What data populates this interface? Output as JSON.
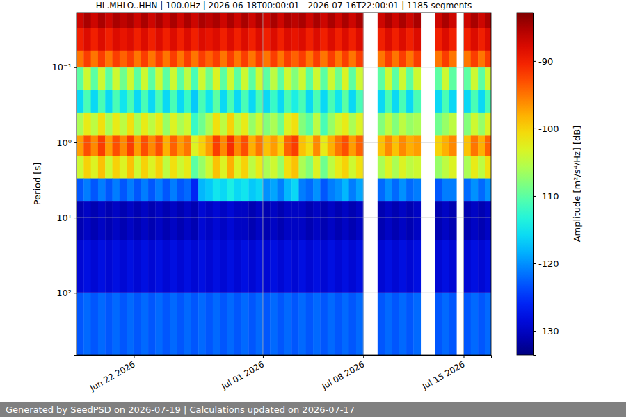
{
  "chart_data": {
    "type": "heatmap",
    "title": "HL.MHLO..HHN | 100.0Hz | 2026-06-18T00:00:01 - 2026-07-16T22:00:01 | 1185 segments",
    "y_label": "Period [s]",
    "annotations": [
      "Generated by SeedPSD on 2026-07-19 | Calculations updated on 2026-07-17"
    ],
    "log": "y",
    "grid": true,
    "color": "jet",
    "xlim": [
      "2026-06-18T00:00:00",
      "2026-07-16T22:00:00"
    ],
    "xticks": [
      {
        "value": "2026-06-22T00:00:00",
        "label": "Jun 22 2026"
      },
      {
        "value": "2026-07-01T00:00:00",
        "label": "Jul 01 2026"
      },
      {
        "value": "2026-07-08T00:00:00",
        "label": "Jul 08 2026"
      },
      {
        "value": "2026-07-15T00:00:00",
        "label": "Jul 15 2026"
      }
    ],
    "ylim": [
      0.0187,
      675
    ],
    "yticks": [
      {
        "value": 0.1,
        "label": "10⁻¹"
      },
      {
        "value": 1,
        "label": "10⁰"
      },
      {
        "value": 10,
        "label": "10¹"
      },
      {
        "value": 100,
        "label": "10²"
      }
    ],
    "colorbar": {
      "label": "Amplitude [m²/s⁴/Hz] [dB]",
      "range": [
        -133.6,
        -82.8
      ],
      "ticks": [
        -90,
        -100,
        -110,
        -120,
        -130
      ]
    },
    "x_bins": [
      "2026-06-18T00:00:00",
      "2026-06-18T12:00:00",
      "2026-06-19T00:00:00",
      "2026-06-19T12:00:00",
      "2026-06-20T00:00:00",
      "2026-06-20T12:00:00",
      "2026-06-21T00:00:00",
      "2026-06-21T12:00:00",
      "2026-06-22T00:00:00",
      "2026-06-22T12:00:00",
      "2026-06-23T00:00:00",
      "2026-06-23T12:00:00",
      "2026-06-24T00:00:00",
      "2026-06-24T12:00:00",
      "2026-06-25T00:00:00",
      "2026-06-25T12:00:00",
      "2026-06-26T00:00:00",
      "2026-06-26T12:00:00",
      "2026-06-27T00:00:00",
      "2026-06-27T12:00:00",
      "2026-06-28T00:00:00",
      "2026-06-28T12:00:00",
      "2026-06-29T00:00:00",
      "2026-06-29T12:00:00",
      "2026-06-30T00:00:00",
      "2026-06-30T12:00:00",
      "2026-07-01T00:00:00",
      "2026-07-01T12:00:00",
      "2026-07-02T00:00:00",
      "2026-07-02T12:00:00",
      "2026-07-03T00:00:00",
      "2026-07-03T12:00:00",
      "2026-07-04T00:00:00",
      "2026-07-04T12:00:00",
      "2026-07-05T00:00:00",
      "2026-07-05T12:00:00",
      "2026-07-06T00:00:00",
      "2026-07-06T12:00:00",
      "2026-07-07T00:00:00",
      "2026-07-07T12:00:00",
      "2026-07-08T00:00:00",
      "2026-07-08T12:00:00",
      "2026-07-09T00:00:00",
      "2026-07-09T12:00:00",
      "2026-07-10T00:00:00",
      "2026-07-10T12:00:00",
      "2026-07-11T00:00:00",
      "2026-07-11T12:00:00",
      "2026-07-12T00:00:00",
      "2026-07-12T12:00:00",
      "2026-07-13T00:00:00",
      "2026-07-13T12:00:00",
      "2026-07-14T00:00:00",
      "2026-07-14T12:00:00",
      "2026-07-15T00:00:00",
      "2026-07-15T12:00:00",
      "2026-07-16T00:00:00",
      "2026-07-16T12:00:00",
      "2026-07-16T22:00:00"
    ],
    "y_bins": [
      0.0187,
      0.03,
      0.06,
      0.1,
      0.2,
      0.4,
      0.8,
      1.5,
      3,
      6,
      20,
      100,
      675
    ],
    "values": [
      [
        -87,
        -85,
        -87,
        -85,
        -87,
        -85,
        -86,
        -85,
        -87,
        -85,
        -87,
        -85,
        -87,
        -85,
        -87,
        -85,
        -87,
        -85,
        -86,
        -85,
        -87,
        -85,
        -87,
        -85,
        -87,
        -85,
        -87,
        -85,
        -87,
        -85,
        -86,
        -85,
        -87,
        -85,
        -87,
        -85,
        -87,
        -85,
        -87,
        -85,
        null,
        null,
        -87,
        -85,
        -87,
        -85,
        -87,
        -85,
        null,
        null,
        -87,
        -85,
        -87,
        null,
        -87,
        -85,
        -87,
        -85
      ],
      [
        -90,
        -88,
        -90,
        -88,
        -90,
        -88,
        -89,
        -88,
        -90,
        -88,
        -90,
        -88,
        -90,
        -88,
        -90,
        -88,
        -90,
        -88,
        -89,
        -88,
        -90,
        -88,
        -90,
        -88,
        -90,
        -88,
        -90,
        -88,
        -90,
        -88,
        -89,
        -88,
        -90,
        -88,
        -90,
        -88,
        -90,
        -88,
        -90,
        -88,
        null,
        null,
        -90,
        -88,
        -90,
        -88,
        -90,
        -88,
        null,
        null,
        -90,
        -88,
        -90,
        null,
        -90,
        -88,
        -90,
        -88
      ],
      [
        -95,
        -92,
        -95,
        -92,
        -95,
        -92,
        -94,
        -92,
        -95,
        -92,
        -95,
        -92,
        -95,
        -92,
        -95,
        -92,
        -95,
        -92,
        -94,
        -92,
        -95,
        -92,
        -95,
        -92,
        -95,
        -92,
        -95,
        -92,
        -95,
        -92,
        -94,
        -92,
        -95,
        -92,
        -95,
        -92,
        -95,
        -92,
        -95,
        -92,
        null,
        null,
        -95,
        -92,
        -95,
        -92,
        -95,
        -92,
        null,
        null,
        -95,
        -92,
        -95,
        null,
        -95,
        -92,
        -95,
        -92
      ],
      [
        -110,
        -104,
        -110,
        -104,
        -110,
        -104,
        -109,
        -104,
        -110,
        -104,
        -110,
        -104,
        -110,
        -104,
        -110,
        -105,
        -111,
        -104,
        -109,
        -103,
        -110,
        -104,
        -110,
        -104,
        -110,
        -104,
        -110,
        -105,
        -110,
        -104,
        -108,
        -104,
        -110,
        -104,
        -110,
        -104,
        -109,
        -103,
        -110,
        -104,
        null,
        null,
        -110,
        -104,
        -110,
        -104,
        -110,
        -104,
        null,
        null,
        -110,
        -104,
        -110,
        null,
        -110,
        -104,
        -110,
        -104
      ],
      [
        -116,
        -111,
        -116,
        -111,
        -116,
        -111,
        -115,
        -111,
        -116,
        -111,
        -116,
        -111,
        -116,
        -111,
        -116,
        -112,
        -117,
        -111,
        -115,
        -110,
        -116,
        -111,
        -116,
        -111,
        -116,
        -111,
        -116,
        -112,
        -116,
        -111,
        -114,
        -111,
        -116,
        -111,
        -116,
        -111,
        -115,
        -110,
        -116,
        -111,
        null,
        null,
        -116,
        -111,
        -116,
        -111,
        -116,
        -111,
        null,
        null,
        -116,
        -111,
        -116,
        null,
        -116,
        -111,
        -116,
        -111
      ],
      [
        -106,
        -102,
        -105,
        -101,
        -106,
        -102,
        -105,
        -101,
        -106,
        -102,
        -105,
        -102,
        -107,
        -103,
        -106,
        -104,
        -112,
        -109,
        -106,
        -101,
        -105,
        -100,
        -105,
        -102,
        -107,
        -104,
        -108,
        -106,
        -109,
        -103,
        -101,
        -108,
        -110,
        -105,
        -111,
        -107,
        -104,
        -102,
        -106,
        -103,
        null,
        null,
        -108,
        -105,
        -108,
        -105,
        -107,
        -106,
        null,
        null,
        -109,
        -107,
        -105,
        null,
        -108,
        -104,
        -107,
        -103
      ],
      [
        -97,
        -93,
        -96,
        -92,
        -97,
        -93,
        -96,
        -92,
        -97,
        -93,
        -96,
        -93,
        -98,
        -94,
        -97,
        -95,
        -103,
        -100,
        -97,
        -92,
        -96,
        -91,
        -96,
        -93,
        -98,
        -95,
        -99,
        -97,
        -100,
        -94,
        -92,
        -99,
        -101,
        -96,
        -102,
        -98,
        -95,
        -93,
        -97,
        -94,
        null,
        null,
        -99,
        -96,
        -99,
        -96,
        -98,
        -97,
        null,
        null,
        -100,
        -98,
        -96,
        null,
        -99,
        -95,
        -98,
        -94
      ],
      [
        -104,
        -100,
        -103,
        -99,
        -104,
        -100,
        -103,
        -99,
        -104,
        -100,
        -103,
        -100,
        -105,
        -101,
        -104,
        -102,
        -110,
        -107,
        -104,
        -99,
        -103,
        -98,
        -103,
        -100,
        -105,
        -102,
        -106,
        -104,
        -107,
        -101,
        -99,
        -106,
        -108,
        -103,
        -109,
        -105,
        -102,
        -100,
        -104,
        -101,
        null,
        null,
        -106,
        -103,
        -106,
        -103,
        -105,
        -104,
        null,
        null,
        -107,
        -105,
        -103,
        null,
        -106,
        -102,
        -105,
        -101
      ],
      [
        -123,
        -121,
        -123,
        -121,
        -123,
        -121,
        -123,
        -121,
        -123,
        -121,
        -123,
        -121,
        -123,
        -121,
        -123,
        -122,
        -126,
        -118,
        -117,
        -115,
        -116,
        -114,
        -116,
        -115,
        -117,
        -116,
        -120,
        -119,
        -121,
        -118,
        -116,
        -121,
        -122,
        -120,
        -123,
        -121,
        -120,
        -118,
        -121,
        -119,
        null,
        null,
        -122,
        -120,
        -122,
        -120,
        -122,
        -121,
        null,
        null,
        -123,
        -121,
        -121,
        null,
        -122,
        -120,
        -122,
        -120
      ],
      [
        -131,
        -130,
        -131,
        -130,
        -131,
        -130,
        -131,
        -130,
        -131,
        -130,
        -131,
        -130,
        -131,
        -130,
        -131,
        -130,
        -131,
        -129,
        -130,
        -129,
        -130,
        -129,
        -130,
        -130,
        -131,
        -130,
        -131,
        -130,
        -131,
        -130,
        -130,
        -130,
        -131,
        -130,
        -131,
        -130,
        -131,
        -130,
        -131,
        -130,
        null,
        null,
        -131,
        -130,
        -131,
        -130,
        -131,
        -130,
        null,
        null,
        -131,
        -130,
        -131,
        null,
        -131,
        -130,
        -131,
        -130
      ],
      [
        -129,
        -128,
        -129,
        -128,
        -129,
        -128,
        -129,
        -128,
        -129,
        -128,
        -129,
        -128,
        -129,
        -128,
        -129,
        -128,
        -129,
        -128,
        -129,
        -128,
        -129,
        -128,
        -129,
        -128,
        -129,
        -128,
        -129,
        -128,
        -129,
        -128,
        -129,
        -128,
        -129,
        -128,
        -129,
        -128,
        -129,
        -128,
        -129,
        -128,
        null,
        null,
        -129,
        -128,
        -129,
        -128,
        -129,
        -128,
        null,
        null,
        -129,
        -128,
        -129,
        null,
        -129,
        -128,
        -129,
        -128
      ],
      [
        -123,
        -122,
        -123,
        -122,
        -123,
        -122,
        -123,
        -122,
        -123,
        -122,
        -123,
        -122,
        -123,
        -122,
        -123,
        -122,
        -123,
        -122,
        -123,
        -122,
        -123,
        -122,
        -123,
        -122,
        -123,
        -122,
        -123,
        -122,
        -123,
        -122,
        -123,
        -122,
        -123,
        -122,
        -123,
        -122,
        -123,
        -122,
        -123,
        -122,
        null,
        null,
        -123,
        -122,
        -123,
        -122,
        -123,
        -122,
        null,
        null,
        -123,
        -122,
        -123,
        null,
        -123,
        -122,
        -123,
        -122
      ]
    ]
  }
}
